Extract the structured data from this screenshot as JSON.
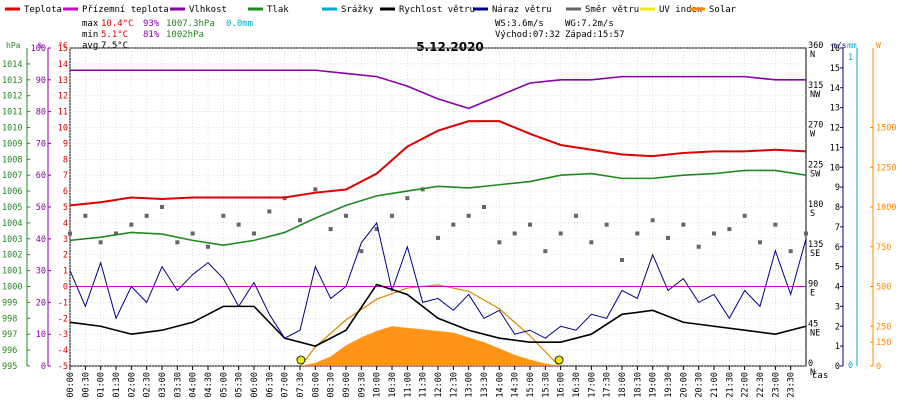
{
  "legend": [
    {
      "label": "Teplota",
      "color": "#dd0000"
    },
    {
      "label": "Přízemní teplota",
      "color": "#cc00cc"
    },
    {
      "label": "Vlhkost",
      "color": "#8800aa"
    },
    {
      "label": "Tlak",
      "color": "#228822"
    },
    {
      "label": "Srážky",
      "color": "#00aacc"
    },
    {
      "label": "Rychlost větru",
      "color": "#000000"
    },
    {
      "label": "Náraz větru",
      "color": "#000088"
    },
    {
      "label": "Směr větru",
      "color": "#666666"
    },
    {
      "label": "UV index",
      "color": "#eeee00"
    },
    {
      "label": "Solar",
      "color": "#ff8800"
    }
  ],
  "stats": {
    "max_label": "max",
    "max_temp": "10.4°C",
    "max_hum": "93%",
    "max_press": "1007.3hPa",
    "max_rain": "0.0mm",
    "min_label": "min",
    "min_temp": "5.1°C",
    "min_hum": "81%",
    "min_press": "1002hPa",
    "avg_label": "avg",
    "avg_temp": "7.5°C",
    "ws": "WS:3.6m/s",
    "wg": "WG:7.2m/s",
    "sunrise": "Východ:07:32",
    "sunset": "Západ:15:57"
  },
  "chart_data": {
    "type": "line",
    "title": "5.12.2020",
    "xlabel": "čas",
    "units_left": [
      "hPa",
      "%",
      "°C"
    ],
    "units_right": [
      "m/s",
      "mm",
      "W"
    ],
    "x_ticks": [
      "00:00",
      "00:30",
      "01:00",
      "01:30",
      "02:00",
      "02:30",
      "03:00",
      "03:30",
      "04:00",
      "04:30",
      "05:00",
      "05:30",
      "06:00",
      "06:30",
      "07:00",
      "07:30",
      "08:00",
      "08:30",
      "09:00",
      "09:30",
      "10:00",
      "10:30",
      "11:00",
      "11:30",
      "12:00",
      "12:30",
      "13:00",
      "13:30",
      "14:00",
      "14:30",
      "15:00",
      "15:30",
      "16:00",
      "16:30",
      "17:00",
      "17:30",
      "18:00",
      "18:30",
      "19:00",
      "19:30",
      "20:00",
      "20:30",
      "21:00",
      "21:30",
      "22:00",
      "22:30",
      "23:00",
      "23:30"
    ],
    "axes": {
      "pressure": {
        "range": [
          995,
          1015
        ],
        "ticks": [
          "995",
          "996",
          "997",
          "998",
          "999",
          "1000",
          "1001",
          "1002",
          "1003",
          "1004",
          "1005",
          "1006",
          "1007",
          "1008",
          "1009",
          "1010",
          "1011",
          "1012",
          "1013",
          "1014"
        ]
      },
      "humidity": {
        "range": [
          0,
          100
        ],
        "ticks": [
          "0",
          "10",
          "20",
          "30",
          "40",
          "50",
          "60",
          "70",
          "80",
          "90",
          "100"
        ]
      },
      "temperature": {
        "range": [
          -5,
          15
        ],
        "ticks": [
          "-5",
          "-4",
          "-3",
          "-2",
          "-1",
          "0",
          "1",
          "2",
          "3",
          "4",
          "5",
          "6",
          "7",
          "8",
          "9",
          "10",
          "11",
          "12",
          "13",
          "14",
          "15"
        ]
      },
      "wind_dir": {
        "ticks": [
          {
            "deg": "0",
            "dir": "N"
          },
          {
            "deg": "45",
            "dir": "NE"
          },
          {
            "deg": "90",
            "dir": "E"
          },
          {
            "deg": "135",
            "dir": "SE"
          },
          {
            "deg": "180",
            "dir": "S"
          },
          {
            "deg": "225",
            "dir": "SW"
          },
          {
            "deg": "270",
            "dir": "W"
          },
          {
            "deg": "315",
            "dir": "NW"
          },
          {
            "deg": "360",
            "dir": "N"
          }
        ]
      },
      "wind_speed": {
        "range": [
          0,
          16
        ],
        "ticks": [
          "0",
          "1",
          "2",
          "3",
          "4",
          "5",
          "6",
          "7",
          "8",
          "9",
          "10",
          "11",
          "12",
          "13",
          "14",
          "15",
          "16"
        ]
      },
      "rain": {
        "ticks": [
          "0",
          "1"
        ]
      },
      "solar": {
        "range": [
          0,
          2000
        ],
        "ticks": [
          "0",
          "150",
          "250",
          "500",
          "750",
          "1000",
          "1250",
          "1500"
        ]
      }
    },
    "series": [
      {
        "name": "Teplota",
        "color": "#dd0000",
        "x": [
          0,
          1,
          2,
          3,
          4,
          5,
          6,
          7,
          8,
          9,
          10,
          11,
          12,
          13,
          14,
          15,
          16,
          17,
          18,
          19,
          20,
          21,
          22,
          23,
          24
        ],
        "values": [
          5.1,
          5.3,
          5.6,
          5.5,
          5.6,
          5.6,
          5.6,
          5.6,
          5.9,
          6.1,
          7.1,
          8.8,
          9.8,
          10.4,
          10.4,
          9.6,
          8.9,
          8.6,
          8.3,
          8.2,
          8.4,
          8.5,
          8.5,
          8.6,
          8.5
        ]
      },
      {
        "name": "Tlak",
        "color": "#228822",
        "x": [
          0,
          1,
          2,
          3,
          4,
          5,
          6,
          7,
          8,
          9,
          10,
          11,
          12,
          13,
          14,
          15,
          16,
          17,
          18,
          19,
          20,
          21,
          22,
          23,
          24
        ],
        "values": [
          1002.9,
          1003.1,
          1003.4,
          1003.3,
          1002.9,
          1002.6,
          1002.9,
          1003.4,
          1004.3,
          1005.1,
          1005.7,
          1006.0,
          1006.3,
          1006.2,
          1006.4,
          1006.6,
          1007.0,
          1007.1,
          1006.8,
          1006.8,
          1007.0,
          1007.1,
          1007.3,
          1007.3,
          1007.0
        ]
      },
      {
        "name": "Vlhkost",
        "color": "#8800aa",
        "x": [
          0,
          1,
          2,
          3,
          4,
          5,
          6,
          7,
          8,
          9,
          10,
          11,
          12,
          13,
          14,
          15,
          16,
          17,
          18,
          19,
          20,
          21,
          22,
          23,
          24
        ],
        "values": [
          93,
          93,
          93,
          93,
          93,
          93,
          93,
          93,
          93,
          92,
          91,
          88,
          84,
          81,
          85,
          89,
          90,
          90,
          91,
          91,
          91,
          91,
          91,
          90,
          90
        ]
      },
      {
        "name": "Přízemní teplota",
        "color": "#cc00cc",
        "x": [
          0,
          24
        ],
        "values": [
          0,
          0
        ]
      },
      {
        "name": "Rychlost větru",
        "color": "#000000",
        "x": [
          0,
          1,
          2,
          3,
          4,
          5,
          6,
          7,
          8,
          9,
          10,
          11,
          12,
          13,
          14,
          15,
          16,
          17,
          18,
          19,
          20,
          21,
          22,
          23,
          24
        ],
        "values": [
          2.2,
          2.0,
          1.6,
          1.8,
          2.2,
          3.0,
          3.0,
          1.4,
          1.0,
          1.8,
          4.1,
          3.6,
          2.4,
          1.8,
          1.4,
          1.2,
          1.2,
          1.6,
          2.6,
          2.8,
          2.2,
          2.0,
          1.8,
          1.6,
          2.0
        ]
      },
      {
        "name": "Náraz větru",
        "color": "#000088",
        "x": [
          0,
          0.5,
          1,
          1.5,
          2,
          2.5,
          3,
          3.5,
          4,
          4.5,
          5,
          5.5,
          6,
          6.5,
          7,
          7.5,
          8,
          8.5,
          9,
          9.5,
          10,
          10.5,
          11,
          11.5,
          12,
          12.5,
          13,
          13.5,
          14,
          14.5,
          15,
          15.5,
          16,
          16.5,
          17,
          17.5,
          18,
          18.5,
          19,
          19.5,
          20,
          20.5,
          21,
          21.5,
          22,
          22.5,
          23,
          23.5,
          24
        ],
        "values": [
          4.8,
          3.0,
          5.2,
          2.4,
          4.0,
          3.2,
          5.0,
          3.8,
          4.6,
          5.2,
          4.4,
          3.0,
          4.2,
          2.6,
          1.4,
          1.8,
          5.0,
          3.4,
          4.0,
          6.2,
          7.2,
          3.8,
          6.0,
          3.2,
          3.4,
          2.8,
          3.6,
          2.4,
          2.8,
          1.6,
          1.8,
          1.4,
          2.0,
          1.8,
          2.6,
          2.4,
          3.8,
          3.4,
          5.6,
          3.8,
          4.4,
          3.2,
          3.6,
          2.4,
          3.8,
          3.0,
          5.8,
          3.6,
          6.4
        ]
      },
      {
        "name": "Solar",
        "color": "#ff8800",
        "x": [
          7.5,
          8,
          8.5,
          9,
          9.5,
          10,
          10.5,
          11,
          11.5,
          12,
          12.5,
          13,
          13.5,
          14,
          14.5,
          15,
          15.5,
          16
        ],
        "values": [
          0,
          20,
          60,
          130,
          180,
          220,
          250,
          240,
          230,
          220,
          210,
          180,
          150,
          110,
          70,
          40,
          15,
          0
        ]
      }
    ],
    "solar_max_curve": {
      "x": [
        7.53,
        8,
        9,
        10,
        11,
        12,
        13,
        14,
        15,
        15.95
      ],
      "values": [
        0,
        120,
        290,
        420,
        490,
        510,
        470,
        360,
        190,
        0
      ]
    },
    "wind_direction": {
      "x": [
        0,
        0.5,
        1,
        1.5,
        2,
        2.5,
        3,
        3.5,
        4,
        4.5,
        5,
        5.5,
        6,
        6.5,
        7,
        7.5,
        8,
        8.5,
        9,
        9.5,
        10,
        10.5,
        11,
        11.5,
        12,
        12.5,
        13,
        13.5,
        14,
        14.5,
        15,
        15.5,
        16,
        16.5,
        17,
        17.5,
        18,
        18.5,
        19,
        19.5,
        20,
        20.5,
        21,
        21.5,
        22,
        22.5,
        23,
        23.5,
        24
      ],
      "values": [
        150,
        170,
        140,
        150,
        160,
        170,
        180,
        140,
        150,
        135,
        170,
        160,
        150,
        175,
        190,
        165,
        200,
        155,
        170,
        130,
        155,
        170,
        190,
        200,
        145,
        160,
        170,
        180,
        140,
        150,
        160,
        130,
        150,
        170,
        140,
        160,
        120,
        150,
        165,
        145,
        160,
        135,
        150,
        155,
        170,
        140,
        160,
        130,
        150
      ]
    },
    "sunrise_marker_x": 7.53,
    "sunset_marker_x": 15.95
  }
}
